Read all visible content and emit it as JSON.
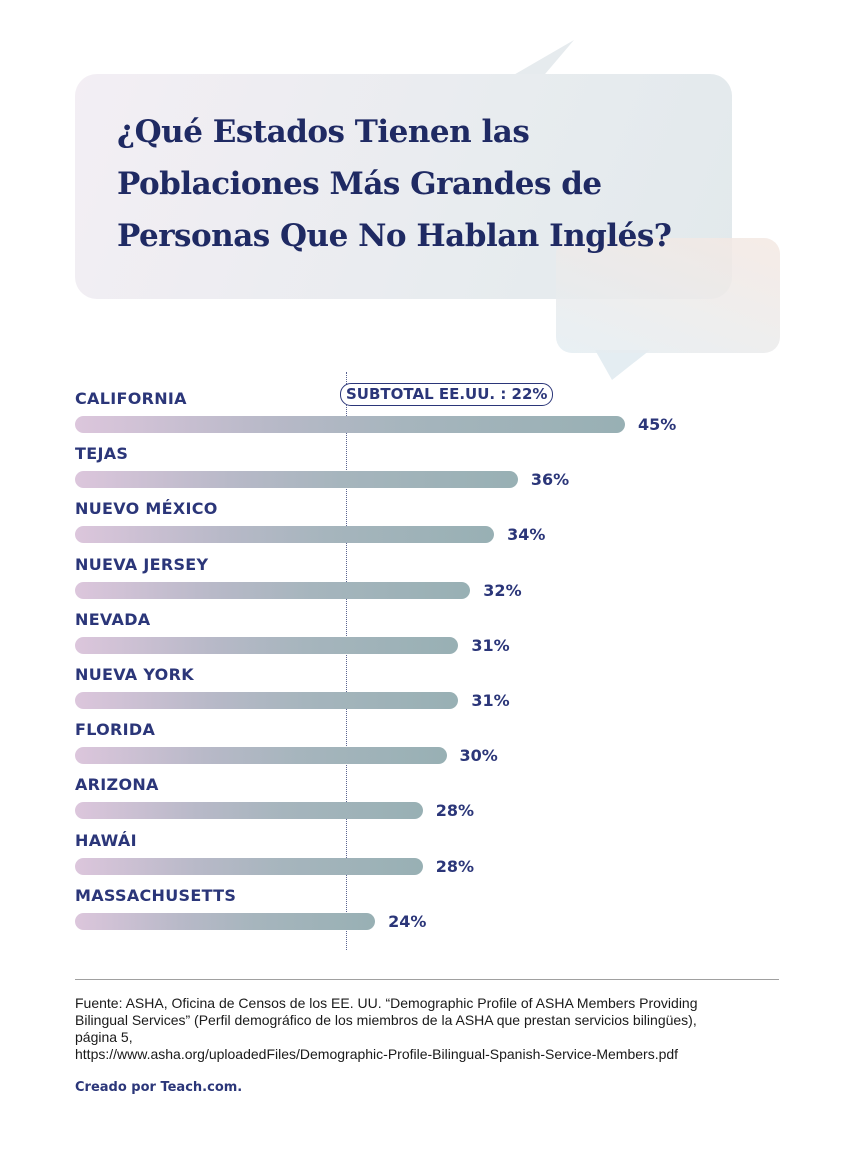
{
  "title": "¿Qué Estados Tienen las Poblaciones Más Grandes de Personas Que No Hablan Inglés?",
  "title_lines": [
    "¿Qué Estados Tienen las",
    "Poblaciones Más Grandes de",
    "Personas Que No Hablan Inglés?"
  ],
  "colors": {
    "text": "#2b3679",
    "title": "#1f2a63",
    "bar_start": "#dcc6dc",
    "bar_end": "#98b0b4"
  },
  "chart_data": {
    "type": "bar",
    "orientation": "horizontal",
    "title": "¿Qué Estados Tienen las Poblaciones Más Grandes de Personas Que No Hablan Inglés?",
    "categories": [
      "CALIFORNIA",
      "TEJAS",
      "NUEVO MÉXICO",
      "NUEVA JERSEY",
      "NEVADA",
      "NUEVA YORK",
      "FLORIDA",
      "ARIZONA",
      "HAWÁI",
      "MASSACHUSETTS"
    ],
    "values": [
      45,
      36,
      34,
      32,
      31,
      31,
      30,
      28,
      28,
      24
    ],
    "value_labels": [
      "45%",
      "36%",
      "34%",
      "32%",
      "31%",
      "31%",
      "30%",
      "28%",
      "28%",
      "24%"
    ],
    "unit": "%",
    "reference_line": {
      "value": 22,
      "label": "SUBTOTAL EE.UU. : 22%"
    },
    "xlabel": "",
    "ylabel": "",
    "grid": false,
    "legend": "none"
  },
  "footer": {
    "source_lines": [
      "Fuente: ASHA, Oficina de Censos de los EE. UU. “Demographic Profile of ASHA Members Providing",
      "Bilingual Services” (Perfil demográfico de los miembros de la ASHA que prestan servicios bilingües),",
      "página 5,",
      "https://www.asha.org/uploadedFiles/Demographic-Profile-Bilingual-Spanish-Service-Members.pdf"
    ],
    "credit": "Creado por Teach.com."
  }
}
